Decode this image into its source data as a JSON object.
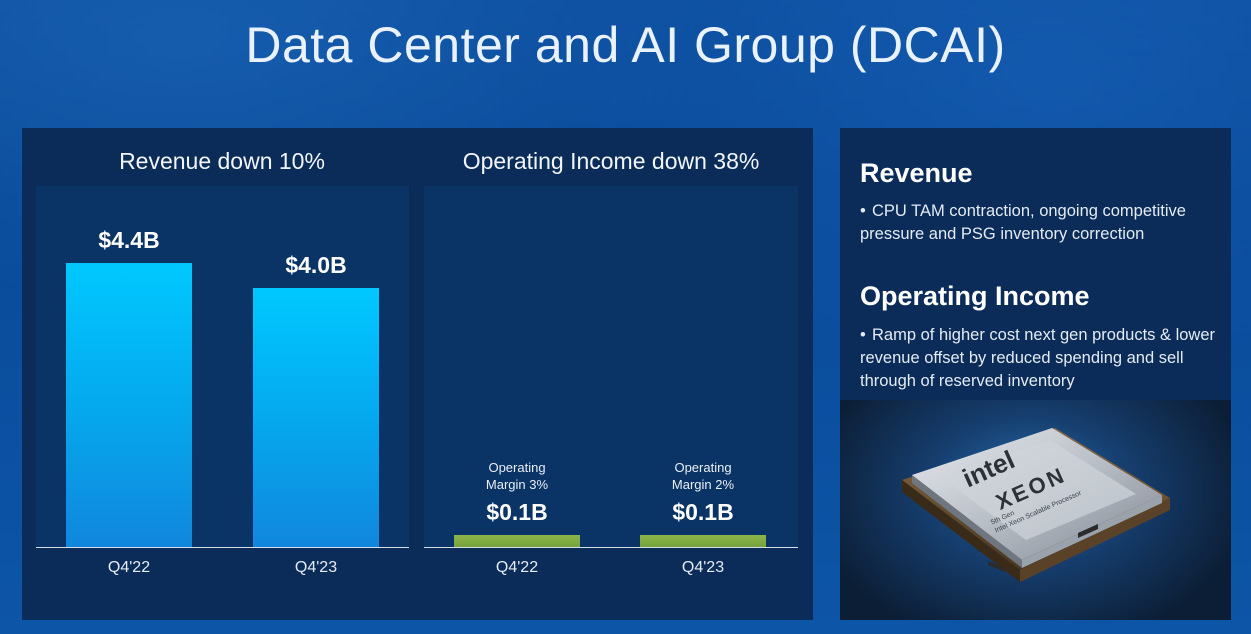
{
  "title": "Data Center and AI Group (DCAI)",
  "colors": {
    "revenue_bar": "#06a6ec",
    "operating_income_bar": "#7aa63f",
    "panel_bg": "#0b2c58",
    "page_bg": "#0b4f9f"
  },
  "chart_data": [
    {
      "type": "bar",
      "title": "Revenue down 10%",
      "categories": [
        "Q4'22",
        "Q4'23"
      ],
      "values": [
        4.4,
        4.0
      ],
      "unit": "$B",
      "data_labels": [
        "$4.4B",
        "$4.0B"
      ],
      "ylim": [
        0,
        5.6
      ],
      "grid": false
    },
    {
      "type": "bar",
      "title": "Operating Income down 38%",
      "categories": [
        "Q4'22",
        "Q4'23"
      ],
      "values": [
        0.14,
        0.09
      ],
      "unit": "$B",
      "data_labels": [
        "$0.1B",
        "$0.1B"
      ],
      "annotations": [
        [
          "Operating",
          "Margin 3%"
        ],
        [
          "Operating",
          "Margin 2%"
        ]
      ],
      "ylim": [
        0,
        5.6
      ],
      "grid": false
    }
  ],
  "commentary": {
    "revenue": {
      "heading": "Revenue",
      "bullet_symbol": "•",
      "bullet": "CPU TAM contraction, ongoing competitive pressure and PSG inventory correction"
    },
    "operating_income": {
      "heading": "Operating Income",
      "bullet_symbol": "•",
      "bullet": "Ramp of higher cost next gen products & lower revenue offset by reduced spending and sell through of reserved inventory"
    }
  },
  "product_image": {
    "icon": "intel-xeon-processor-chip",
    "brand": "intel",
    "product": "XEON",
    "sub1": "5th Gen",
    "sub2": "Intel Xeon Scalable Processor"
  }
}
